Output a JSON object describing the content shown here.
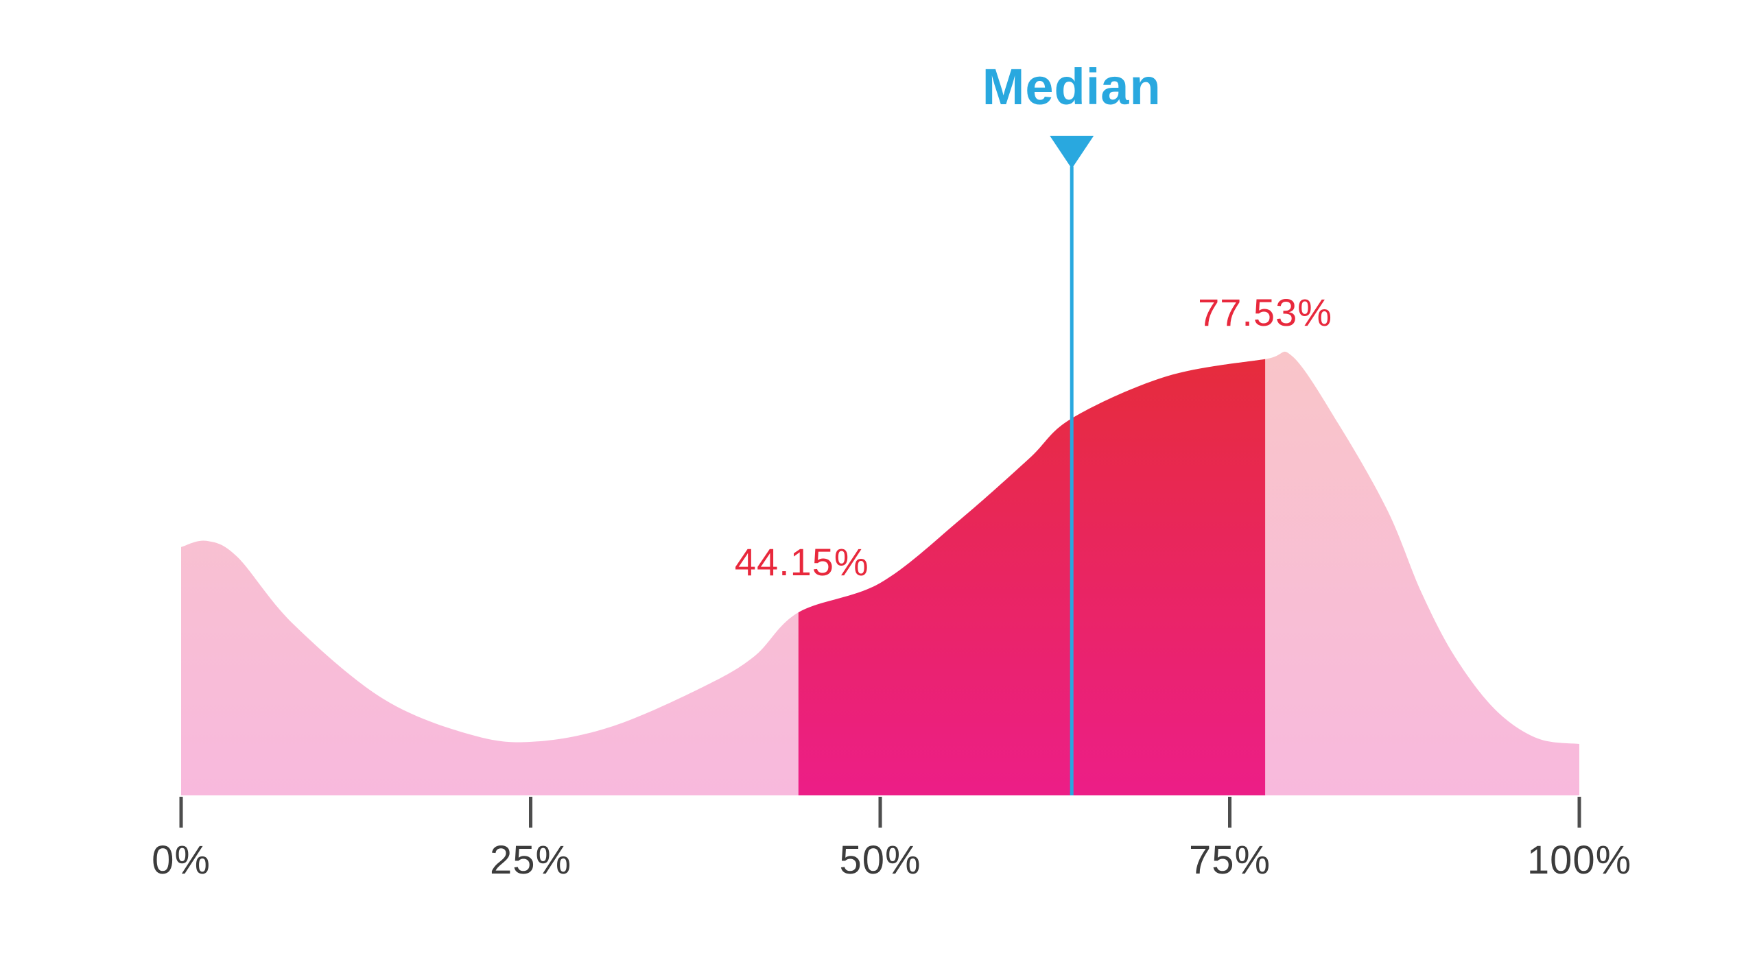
{
  "chart_data": {
    "type": "area",
    "subtype": "density-distribution",
    "title": "",
    "grid": false,
    "legend": {
      "visible": false
    },
    "x_axis": {
      "min": 0,
      "max": 100,
      "unit": "%",
      "ticks": [
        {
          "value": 0,
          "label": "0%"
        },
        {
          "value": 25,
          "label": "25%"
        },
        {
          "value": 50,
          "label": "50%"
        },
        {
          "value": 75,
          "label": "75%"
        },
        {
          "value": 100,
          "label": "100%"
        }
      ]
    },
    "y_axis": {
      "visible": false,
      "note": "relative density, no scale shown"
    },
    "curve_points": [
      [
        0,
        0.566
      ],
      [
        1.8,
        0.58
      ],
      [
        4,
        0.544
      ],
      [
        8,
        0.391
      ],
      [
        14.5,
        0.219
      ],
      [
        21,
        0.136
      ],
      [
        25.5,
        0.123
      ],
      [
        31,
        0.159
      ],
      [
        37.5,
        0.25
      ],
      [
        41,
        0.317
      ],
      [
        44.15,
        0.417
      ],
      [
        50,
        0.484
      ],
      [
        55.7,
        0.628
      ],
      [
        60.6,
        0.766
      ],
      [
        63.7,
        0.859
      ],
      [
        70.5,
        0.955
      ],
      [
        77.53,
        0.994
      ],
      [
        79.5,
        1.0
      ],
      [
        82.8,
        0.845
      ],
      [
        86.3,
        0.648
      ],
      [
        88.7,
        0.463
      ],
      [
        91.1,
        0.316
      ],
      [
        94,
        0.195
      ],
      [
        97,
        0.13
      ],
      [
        100,
        0.117
      ]
    ],
    "highlight_range": {
      "from": 44.15,
      "to": 77.53,
      "from_label": "44.15%",
      "to_label": "77.53%"
    },
    "median": {
      "value": 63.7,
      "label": "Median"
    },
    "colors": {
      "background": "#FFFFFF",
      "area_light_top": "#F9C5C9",
      "area_light_bottom": "#F8B9DD",
      "area_highlight_top": "#E62C3C",
      "area_highlight_bottom": "#EC1E87",
      "median_accent": "#29A8DF",
      "range_label": "#E8283C",
      "tick_line": "#4D4D4D",
      "tick_label": "#3C3C3C"
    }
  }
}
